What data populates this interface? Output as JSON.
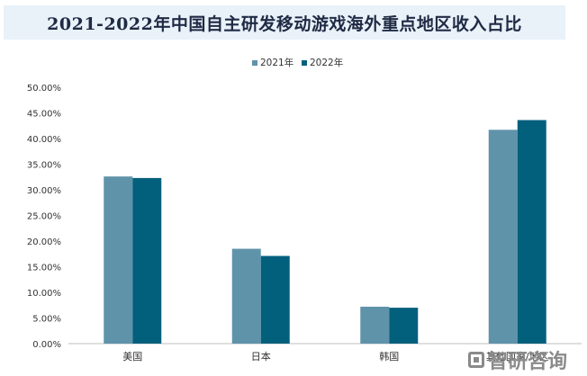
{
  "title": "2021-2022年中国自主研发移动游戏海外重点地区收入占比",
  "footer_logo_text": "智研咨询",
  "colors": {
    "series_2021": "#5f93aa",
    "series_2022": "#03607d"
  },
  "chart_data": {
    "type": "bar",
    "title": "2021-2022年中国自主研发移动游戏海外重点地区收入占比",
    "categories": [
      "美国",
      "日本",
      "韩国",
      "其他国家/地区"
    ],
    "series": [
      {
        "name": "2021年",
        "values": [
          32.6,
          18.5,
          7.2,
          41.7
        ]
      },
      {
        "name": "2022年",
        "values": [
          32.3,
          17.1,
          7.0,
          43.6
        ]
      }
    ],
    "ylim": [
      0,
      50
    ],
    "y_ticks": [
      0,
      5,
      10,
      15,
      20,
      25,
      30,
      35,
      40,
      45,
      50
    ],
    "y_format": "percent_2dp",
    "legend_position": "top-center",
    "grid": false
  }
}
